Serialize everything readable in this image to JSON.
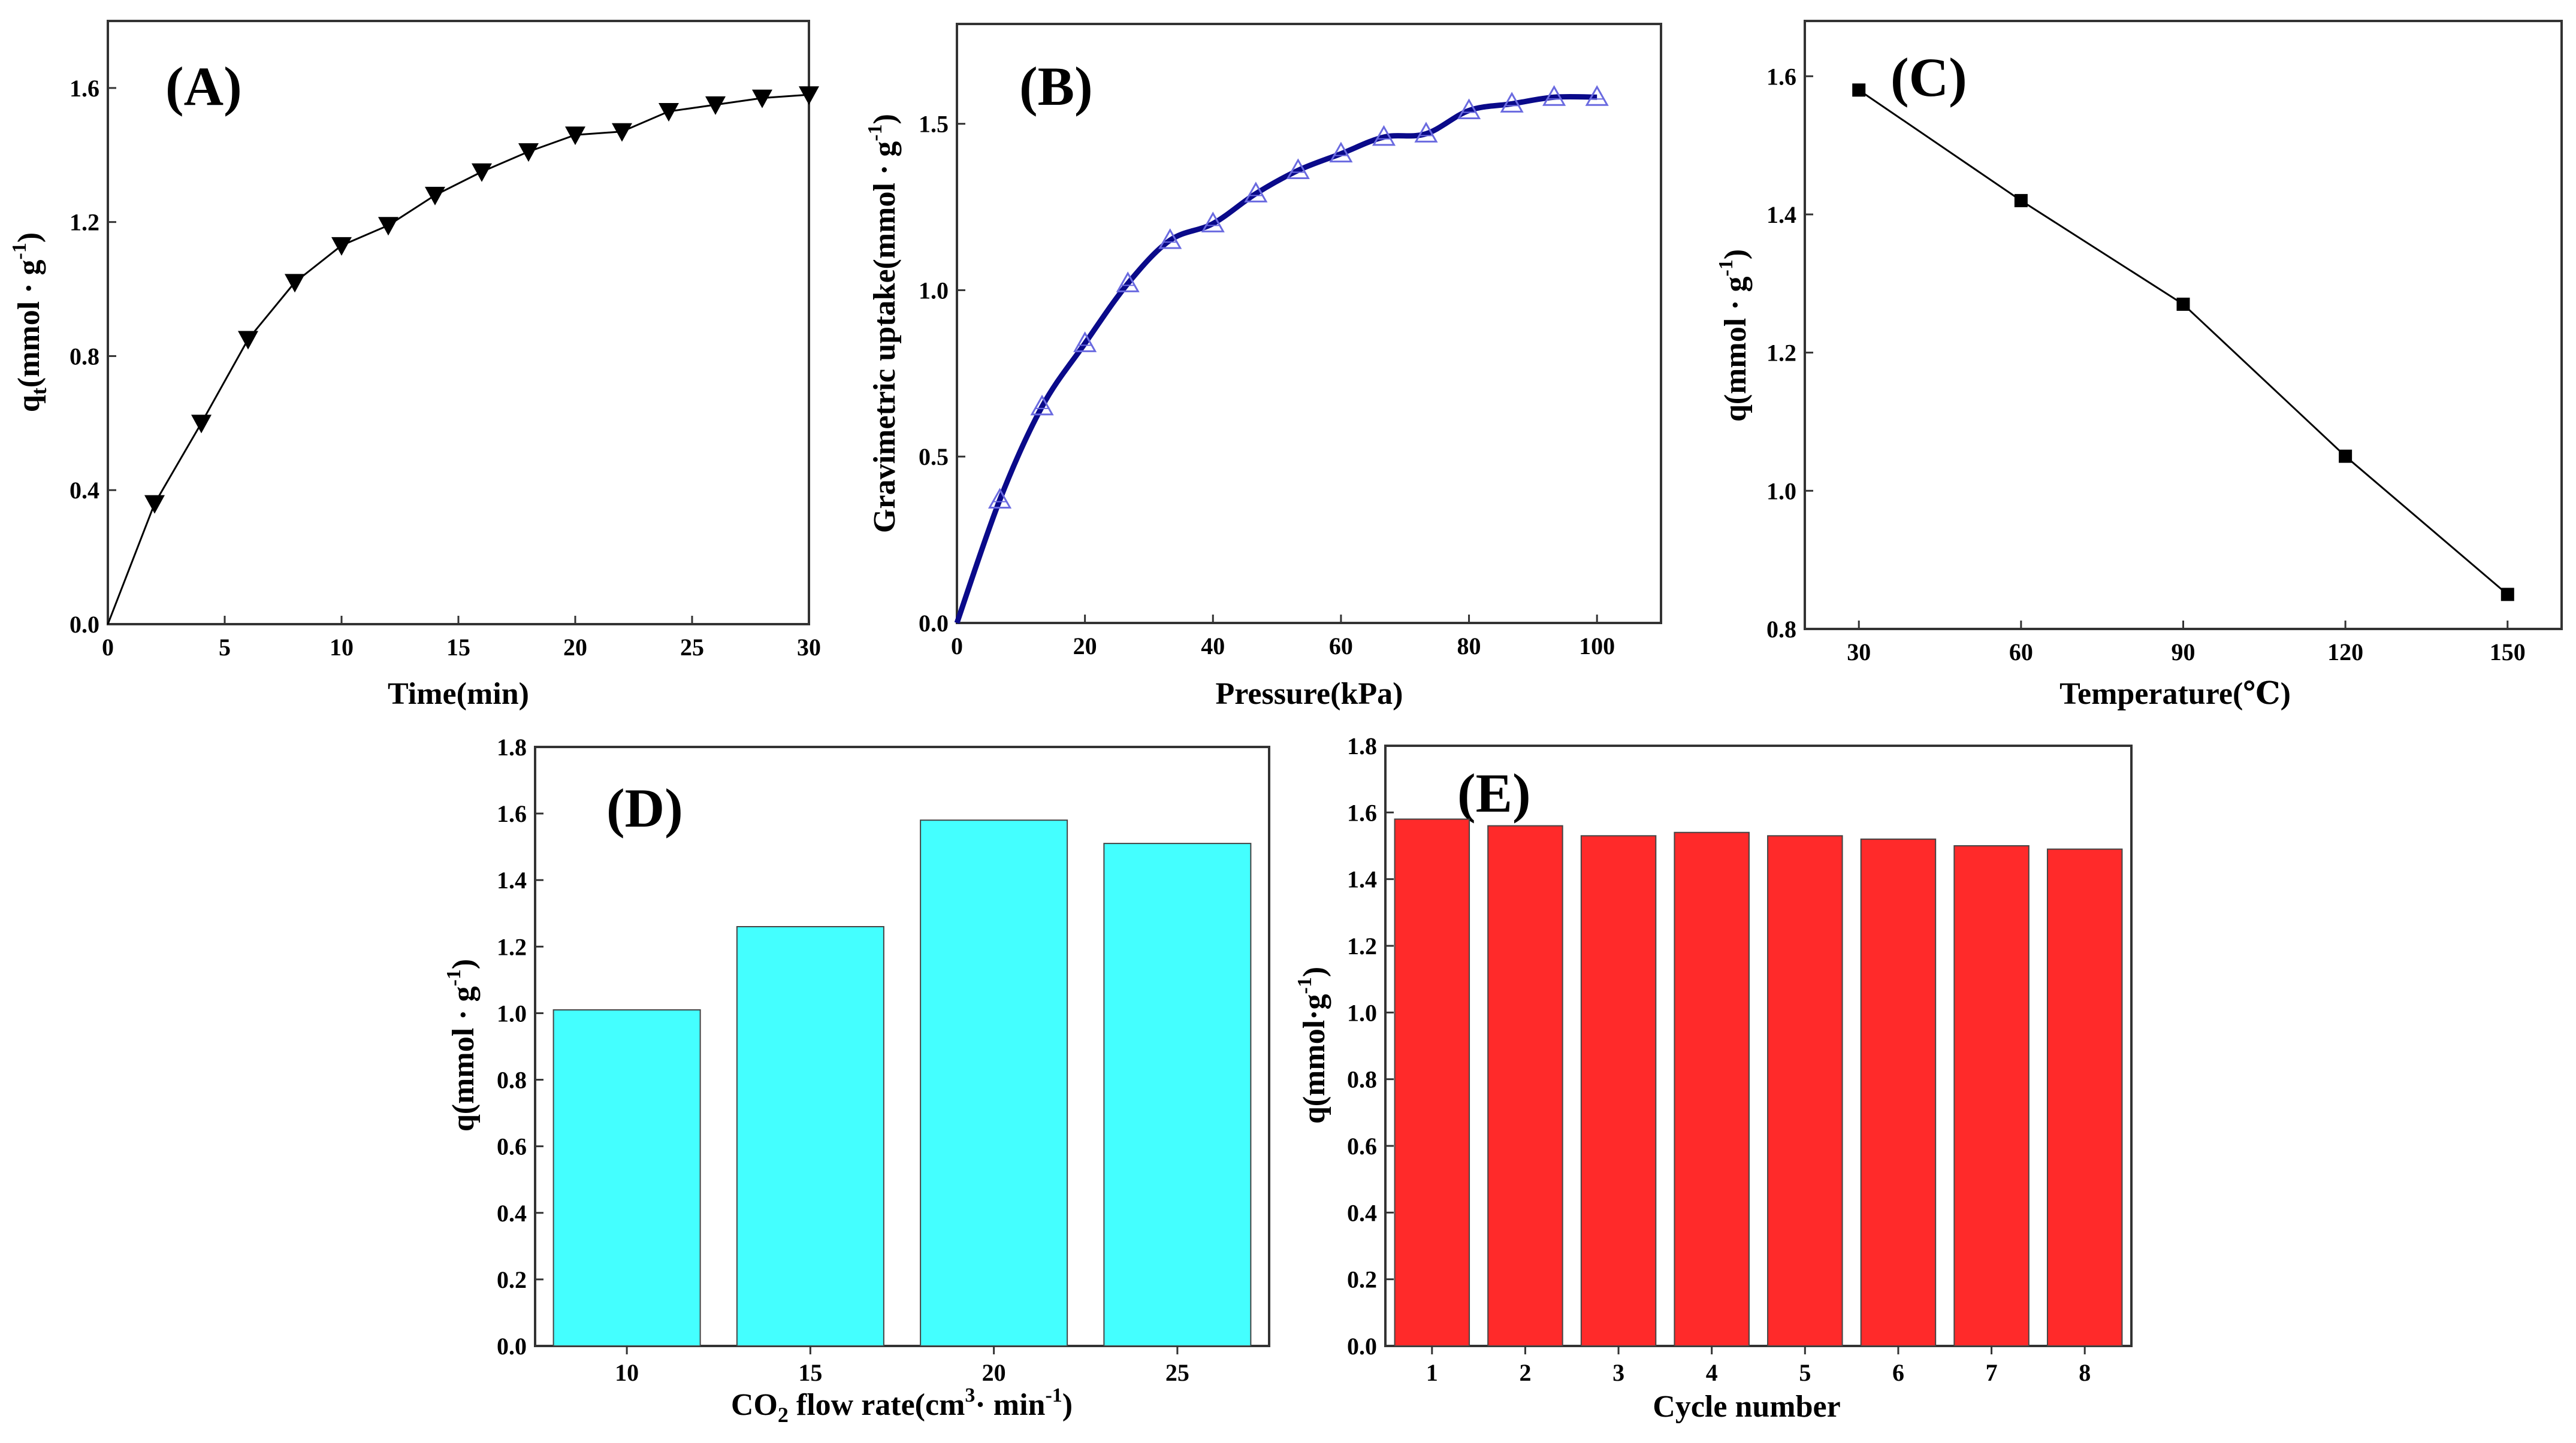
{
  "chart_data": [
    {
      "panel": "(A)",
      "type": "line",
      "marker": "triangle-down",
      "title": "",
      "xlabel": "Time(min)",
      "ylabel_main": "q",
      "ylabel_sub": "t",
      "ylabel_rest": "(mmol · g",
      "ylabel_sup": "-1",
      "ylabel_close": ")",
      "xlim": [
        0,
        30
      ],
      "ylim": [
        0.0,
        1.8
      ],
      "xticks": [
        0,
        5,
        10,
        15,
        20,
        25,
        30
      ],
      "xtick_labels": [
        "0",
        "5",
        "10",
        "15",
        "20",
        "25",
        "30"
      ],
      "yticks": [
        0.0,
        0.4,
        0.8,
        1.2,
        1.6
      ],
      "ytick_labels": [
        "0.0",
        "0.4",
        "0.8",
        "1.2",
        "1.6"
      ],
      "x": [
        0,
        2,
        4,
        6,
        8,
        10,
        12,
        14,
        16,
        18,
        20,
        22,
        24,
        26,
        28,
        30
      ],
      "y": [
        0.0,
        0.36,
        0.6,
        0.85,
        1.02,
        1.13,
        1.19,
        1.28,
        1.35,
        1.41,
        1.46,
        1.47,
        1.53,
        1.55,
        1.57,
        1.58
      ],
      "color": "#000000"
    },
    {
      "panel": "(B)",
      "type": "line",
      "marker": "triangle-up-open",
      "title": "",
      "xlabel": "Pressure(kPa)",
      "ylabel_main": "Gravimetric uptake(mmol · g",
      "ylabel_sup": "-1",
      "ylabel_close": ")",
      "xlim": [
        0,
        110
      ],
      "ylim": [
        0.0,
        1.8
      ],
      "xticks": [
        0,
        20,
        40,
        60,
        80,
        100
      ],
      "xtick_labels": [
        "0",
        "20",
        "40",
        "60",
        "80",
        "100"
      ],
      "yticks": [
        0.0,
        0.5,
        1.0,
        1.5
      ],
      "ytick_labels": [
        "0.0",
        "0.5",
        "1.0",
        "1.5"
      ],
      "x": [
        0,
        6.7,
        13.3,
        20,
        26.7,
        33.3,
        40,
        46.7,
        53.3,
        60,
        66.7,
        73.3,
        80,
        86.7,
        93.3,
        100
      ],
      "y": [
        0.0,
        0.37,
        0.65,
        0.84,
        1.02,
        1.15,
        1.2,
        1.29,
        1.36,
        1.41,
        1.46,
        1.47,
        1.54,
        1.56,
        1.58,
        1.58
      ],
      "color": "#0a0a8a",
      "marker_color": "#6a6ae0"
    },
    {
      "panel": "(C)",
      "type": "line",
      "marker": "square",
      "title": "",
      "xlabel": "Temperature(℃)",
      "ylabel_main": "q(mmol · g",
      "ylabel_sup": "-1",
      "ylabel_close": ")",
      "xlim": [
        20,
        160
      ],
      "ylim": [
        0.8,
        1.68
      ],
      "xticks": [
        30,
        60,
        90,
        120,
        150
      ],
      "xtick_labels": [
        "30",
        "60",
        "90",
        "120",
        "150"
      ],
      "yticks": [
        0.8,
        1.0,
        1.2,
        1.4,
        1.6
      ],
      "ytick_labels": [
        "0.8",
        "1.0",
        "1.2",
        "1.4",
        "1.6"
      ],
      "x": [
        30,
        60,
        90,
        120,
        150
      ],
      "y": [
        1.58,
        1.42,
        1.27,
        1.05,
        0.85
      ],
      "color": "#000000"
    },
    {
      "panel": "(D)",
      "type": "bar",
      "title": "",
      "xlabel_pre": "CO",
      "xlabel_sub": "2",
      "xlabel_mid": " flow rate(cm",
      "xlabel_sup": "3",
      "xlabel_mid2": "· min",
      "xlabel_sup2": "-1",
      "xlabel_close": ")",
      "ylabel_main": "q(mmol · g",
      "ylabel_sup": "-1",
      "ylabel_close": ")",
      "ylim": [
        0.0,
        1.8
      ],
      "yticks": [
        0.0,
        0.2,
        0.4,
        0.6,
        0.8,
        1.0,
        1.2,
        1.4,
        1.6,
        1.8
      ],
      "ytick_labels": [
        "0.0",
        "0.2",
        "0.4",
        "0.6",
        "0.8",
        "1.0",
        "1.2",
        "1.4",
        "1.6",
        "1.8"
      ],
      "categories": [
        "10",
        "15",
        "20",
        "25"
      ],
      "values": [
        1.01,
        1.26,
        1.58,
        1.51
      ],
      "color": "#44ffff"
    },
    {
      "panel": "(E)",
      "type": "bar",
      "title": "",
      "xlabel": "Cycle number",
      "ylabel_main": "q(mmol·g",
      "ylabel_sup": "-1",
      "ylabel_close": ")",
      "ylim": [
        0.0,
        1.8
      ],
      "yticks": [
        0.0,
        0.2,
        0.4,
        0.6,
        0.8,
        1.0,
        1.2,
        1.4,
        1.6,
        1.8
      ],
      "ytick_labels": [
        "0.0",
        "0.2",
        "0.4",
        "0.6",
        "0.8",
        "1.0",
        "1.2",
        "1.4",
        "1.6",
        "1.8"
      ],
      "categories": [
        "1",
        "2",
        "3",
        "4",
        "5",
        "6",
        "7",
        "8"
      ],
      "values": [
        1.58,
        1.56,
        1.53,
        1.54,
        1.53,
        1.52,
        1.5,
        1.49
      ],
      "color": "#ff2a2a"
    }
  ]
}
